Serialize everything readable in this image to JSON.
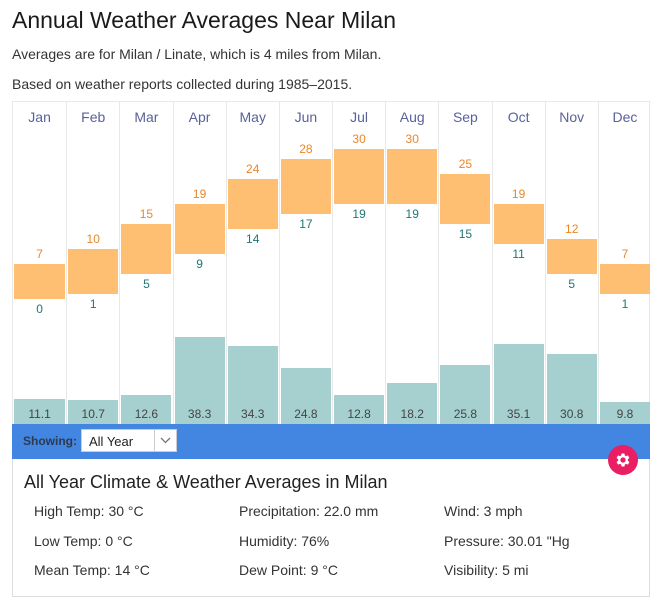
{
  "header": {
    "title": "Annual Weather Averages Near Milan",
    "subtitle1": "Averages are for Milan / Linate, which is 4 miles from Milan.",
    "subtitle2": "Based on weather reports collected during 1985–2015."
  },
  "colors": {
    "temp_bar": "#ffbf72",
    "high_text": "#e8872b",
    "low_text": "#1e7775",
    "precip_bar": "#a6d0cf",
    "month_text": "#5a6199",
    "showing_bar": "#4286e2",
    "gear_button": "#e91e63"
  },
  "chart_data": {
    "type": "bar",
    "title": "Annual Weather Averages Near Milan",
    "categories": [
      "Jan",
      "Feb",
      "Mar",
      "Apr",
      "May",
      "Jun",
      "Jul",
      "Aug",
      "Sep",
      "Oct",
      "Nov",
      "Dec"
    ],
    "series": [
      {
        "name": "High Temp (°C)",
        "values": [
          7,
          10,
          15,
          19,
          24,
          28,
          30,
          30,
          25,
          19,
          12,
          7
        ]
      },
      {
        "name": "Low Temp (°C)",
        "values": [
          0,
          1,
          5,
          9,
          14,
          17,
          19,
          19,
          15,
          11,
          5,
          1
        ]
      },
      {
        "name": "Precipitation (mm)",
        "values": [
          11.1,
          10.7,
          12.6,
          38.3,
          34.3,
          24.8,
          12.8,
          18.2,
          25.8,
          35.1,
          30.8,
          9.8
        ]
      }
    ],
    "precip_labels": [
      "11.1",
      "10.7",
      "12.6",
      "38.3",
      "34.3",
      "24.8",
      "12.8",
      "18.2",
      "25.8",
      "35.1",
      "30.8",
      "9.8"
    ],
    "temp_range": [
      0,
      30
    ],
    "xlabel": "",
    "ylabel": "",
    "grid": true
  },
  "showing": {
    "label": "Showing:",
    "selected": "All Year"
  },
  "summary": {
    "title": "All Year Climate & Weather Averages in Milan",
    "stats": [
      [
        "High Temp: 30 °C",
        "Precipitation: 22.0 mm",
        "Wind: 3 mph"
      ],
      [
        "Low Temp: 0 °C",
        "Humidity: 76%",
        "Pressure: 30.01 \"Hg"
      ],
      [
        "Mean Temp: 14 °C",
        "Dew Point: 9 °C",
        "Visibility: 5 mi"
      ]
    ]
  }
}
